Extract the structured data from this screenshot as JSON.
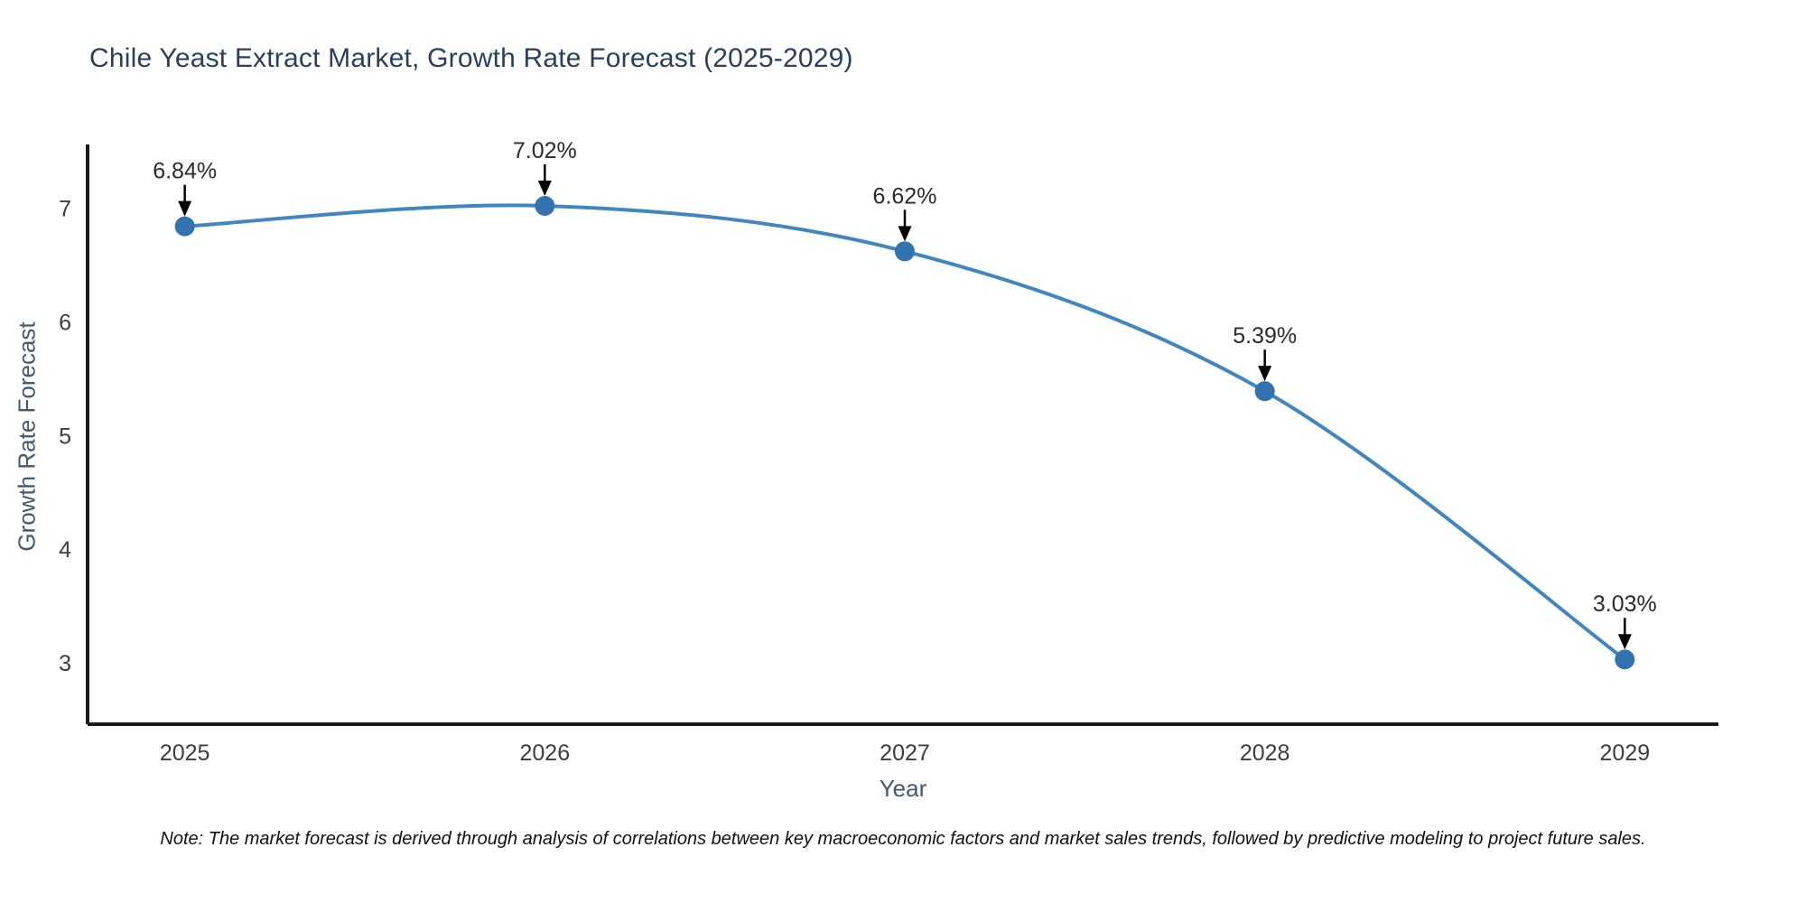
{
  "chart_data": {
    "type": "line",
    "title": "Chile Yeast Extract Market, Growth Rate Forecast (2025-2029)",
    "xlabel": "Year",
    "ylabel": "Growth Rate Forecast",
    "categories": [
      "2025",
      "2026",
      "2027",
      "2028",
      "2029"
    ],
    "x": [
      2025,
      2026,
      2027,
      2028,
      2029
    ],
    "values": [
      6.84,
      7.02,
      6.62,
      5.39,
      3.03
    ],
    "point_labels": [
      "6.84%",
      "7.02%",
      "6.62%",
      "5.39%",
      "3.03%"
    ],
    "yticks": [
      3,
      4,
      5,
      6,
      7
    ],
    "xlim": [
      2024.73,
      2029.26
    ],
    "ylim": [
      2.46,
      7.56
    ],
    "grid": false,
    "legend": false,
    "line_shape": "spline",
    "colors": {
      "line": "#4285c0",
      "marker": "#3372ad",
      "axis": "#1a1a1a",
      "tick_text": "#3d3d3d",
      "title_text": "#2a3f5f",
      "axis_title_text": "#42586e",
      "annotation_text": "#2b2b2b",
      "annotation_arrow": "#000000",
      "note_text": "#111111",
      "background": "#ffffff"
    }
  },
  "note": {
    "text": "Note: The market forecast is derived through analysis of correlations between key macroeconomic factors and market sales trends, followed by predictive modeling to project future sales."
  }
}
